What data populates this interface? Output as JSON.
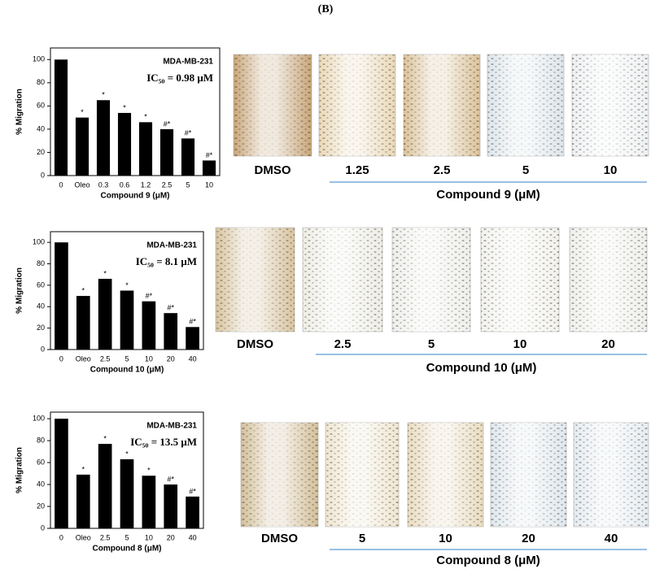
{
  "panel_label": "(B)",
  "chart_data": [
    {
      "type": "bar",
      "cell_line": "MDA-MB-231",
      "ic50": "IC₅₀ = 0.98 μM",
      "xlabel": "Compound 9 (μM)",
      "ylabel": "% Migration",
      "categories": [
        "0",
        "Oleo",
        "0.3",
        "0.6",
        "1.2",
        "2.5",
        "5",
        "10"
      ],
      "values": [
        100,
        50,
        65,
        54,
        46,
        40,
        32,
        13
      ],
      "annotations": [
        null,
        "*",
        "*",
        "*",
        "*",
        "#*",
        "#*",
        "#*"
      ],
      "color": "#000000",
      "ylim": [
        0,
        110
      ],
      "yticks": [
        0,
        20,
        40,
        60,
        80,
        100
      ]
    },
    {
      "type": "bar",
      "cell_line": "MDA-MB-231",
      "ic50": "IC₅₀ = 8.1 μM",
      "xlabel": "Compound 10 (μM)",
      "ylabel": "% Migration",
      "categories": [
        "0",
        "Oleo",
        "2.5",
        "5",
        "10",
        "20",
        "40"
      ],
      "values": [
        100,
        50,
        66,
        55,
        45,
        34,
        21
      ],
      "annotations": [
        null,
        "*",
        "*",
        "*",
        "#*",
        "#*",
        "#*"
      ],
      "color": "#000000",
      "ylim": [
        0,
        110
      ],
      "yticks": [
        0,
        20,
        40,
        60,
        80,
        100
      ]
    },
    {
      "type": "bar",
      "cell_line": "MDA-MB-231",
      "ic50": "IC₅₀ = 13.5 μM",
      "xlabel": "Compound 8 (μM)",
      "ylabel": "% Migration",
      "categories": [
        "0",
        "Oleo",
        "2.5",
        "5",
        "10",
        "20",
        "40"
      ],
      "values": [
        100,
        49,
        77,
        63,
        48,
        40,
        29
      ],
      "annotations": [
        null,
        "*",
        "*",
        "*",
        "*",
        "#*",
        "#*"
      ],
      "color": "#000000",
      "ylim": [
        0,
        106
      ],
      "yticks": [
        0,
        20,
        40,
        60,
        80,
        100
      ]
    }
  ],
  "image_rows": [
    {
      "labels": [
        "DMSO",
        "1.25",
        "2.5",
        "5",
        "10"
      ],
      "caption": "Compound 9 (μM)"
    },
    {
      "labels": [
        "DMSO",
        "2.5",
        "5",
        "10",
        "20"
      ],
      "caption": "Compound 10 (μM)"
    },
    {
      "labels": [
        "DMSO",
        "5",
        "10",
        "20",
        "40"
      ],
      "caption": "Compound 8 (μM)"
    }
  ]
}
